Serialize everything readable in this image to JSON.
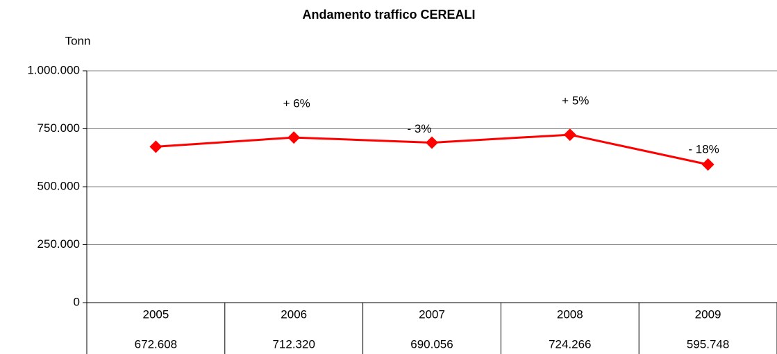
{
  "chart_data": {
    "type": "line",
    "title": "Andamento traffico CEREALI",
    "y_label": "Tonn",
    "categories": [
      "2005",
      "2006",
      "2007",
      "2008",
      "2009"
    ],
    "values": [
      672608,
      712320,
      690056,
      724266,
      595748
    ],
    "value_labels": [
      "672.608",
      "712.320",
      "690.056",
      "724.266",
      "595.748"
    ],
    "change_labels": [
      null,
      "+ 6%",
      "- 3%",
      "+ 5%",
      "- 18%"
    ],
    "color": "#ff0000",
    "ylim": [
      0,
      1000000
    ],
    "yticks": [
      0,
      {
        "value": 250000,
        "label": "250.000"
      },
      {
        "value": 500000,
        "label": "500.000"
      },
      {
        "value": 750000,
        "label": "750.000"
      },
      {
        "value": 1000000,
        "label": "1.000.000"
      }
    ],
    "grid": true
  }
}
